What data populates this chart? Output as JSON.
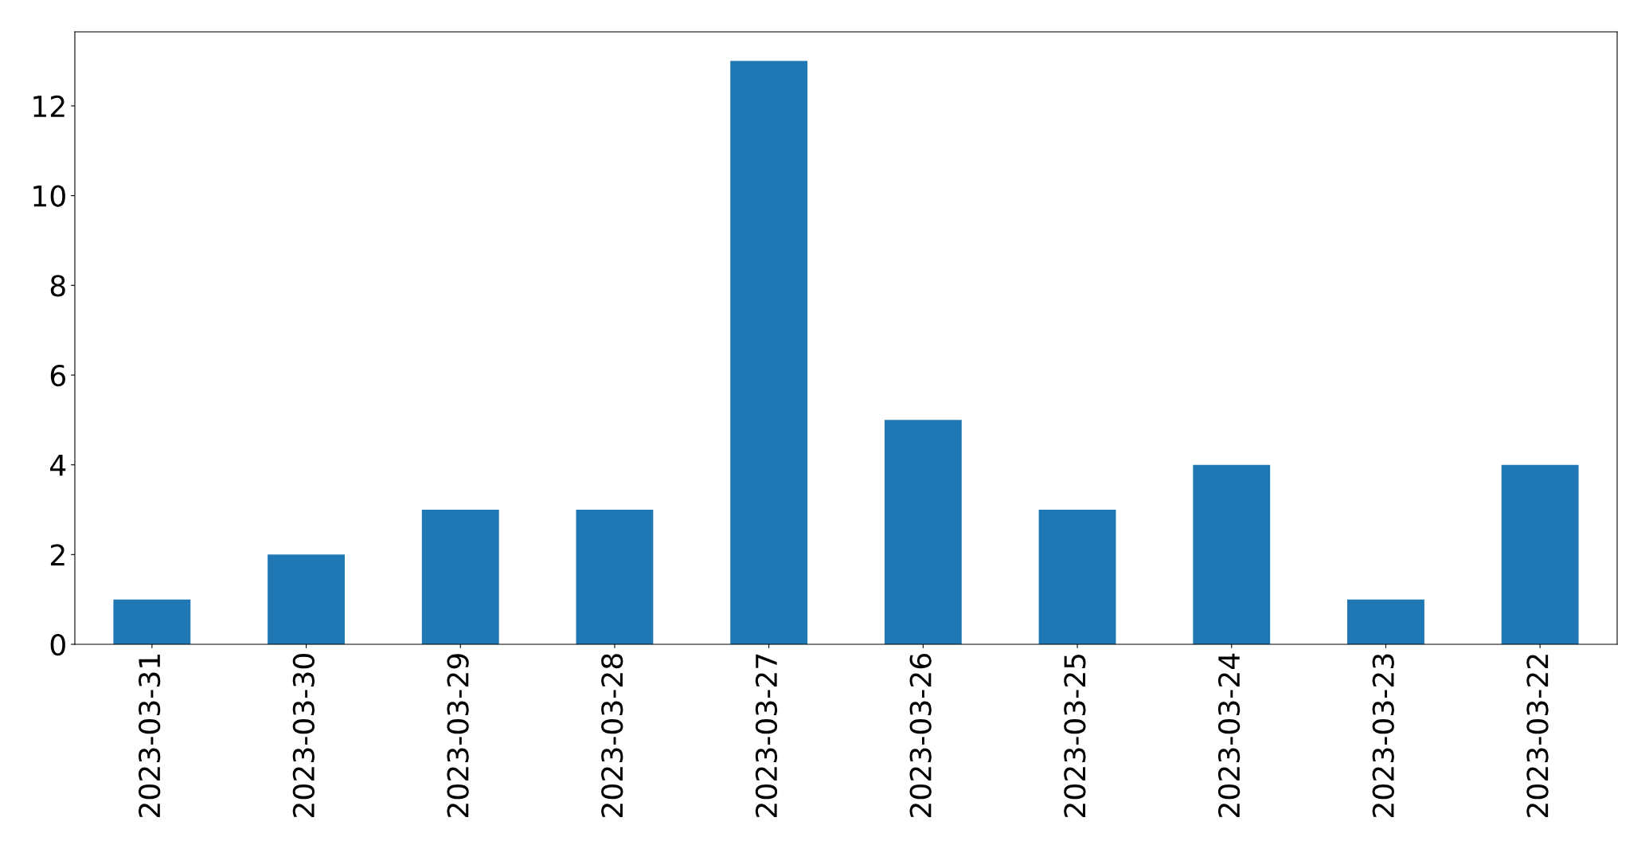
{
  "chart_data": {
    "type": "bar",
    "categories": [
      "2023-03-31",
      "2023-03-30",
      "2023-03-29",
      "2023-03-28",
      "2023-03-27",
      "2023-03-26",
      "2023-03-25",
      "2023-03-24",
      "2023-03-23",
      "2023-03-22"
    ],
    "values": [
      1,
      2,
      3,
      3,
      13,
      5,
      3,
      4,
      1,
      4
    ],
    "color": "#1f77b4",
    "ylim": [
      0,
      13.65
    ],
    "yticks": [
      0,
      2,
      4,
      6,
      8,
      10,
      12
    ],
    "grid": false
  }
}
